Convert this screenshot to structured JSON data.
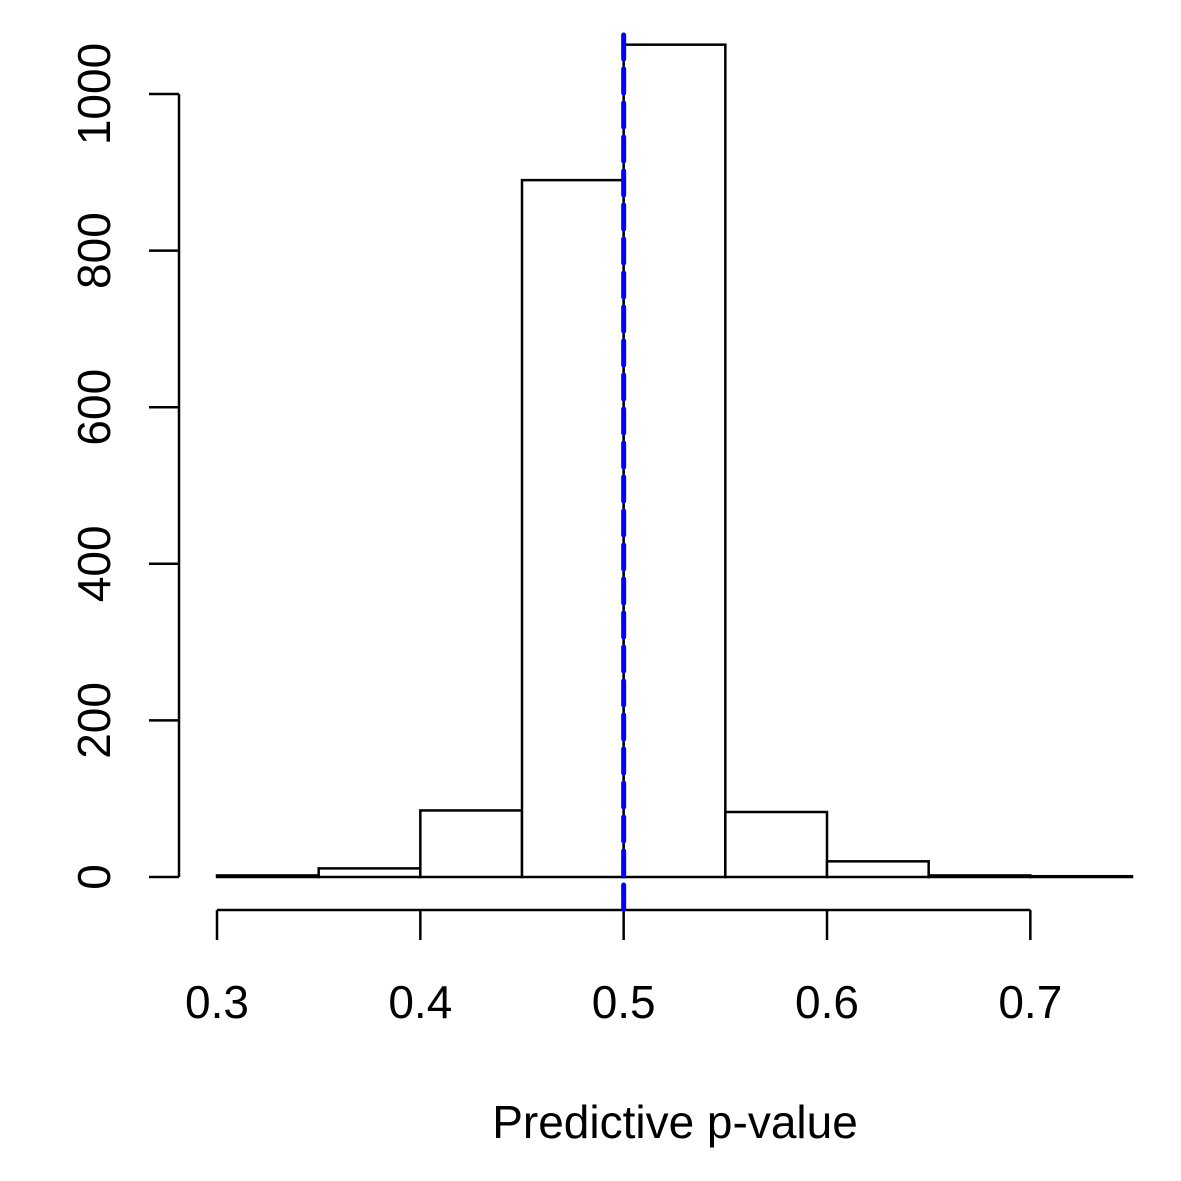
{
  "chart_data": {
    "type": "bar",
    "xlabel": "Predictive p-value",
    "ylabel": "",
    "bins": [
      {
        "start": 0.3,
        "end": 0.35,
        "count": 2
      },
      {
        "start": 0.35,
        "end": 0.4,
        "count": 11
      },
      {
        "start": 0.4,
        "end": 0.45,
        "count": 85
      },
      {
        "start": 0.45,
        "end": 0.5,
        "count": 890
      },
      {
        "start": 0.5,
        "end": 0.55,
        "count": 1063
      },
      {
        "start": 0.55,
        "end": 0.6,
        "count": 83
      },
      {
        "start": 0.6,
        "end": 0.65,
        "count": 20
      },
      {
        "start": 0.65,
        "end": 0.7,
        "count": 2
      },
      {
        "start": 0.7,
        "end": 0.75,
        "count": 1
      }
    ],
    "xticks": [
      0.3,
      0.4,
      0.5,
      0.6,
      0.7
    ],
    "xtick_labels": [
      "0.3",
      "0.4",
      "0.5",
      "0.6",
      "0.7"
    ],
    "yticks": [
      0,
      200,
      400,
      600,
      800,
      1000
    ],
    "ytick_labels": [
      "0",
      "200",
      "400",
      "600",
      "800",
      "1000"
    ],
    "xlim": [
      0.3,
      0.75
    ],
    "ylim": [
      0,
      1070
    ],
    "reference_line": {
      "x": 0.5,
      "color": "#0000ff",
      "style": "dashed"
    },
    "bar_fill": "#ffffff",
    "bar_stroke": "#000000",
    "grid": false
  }
}
